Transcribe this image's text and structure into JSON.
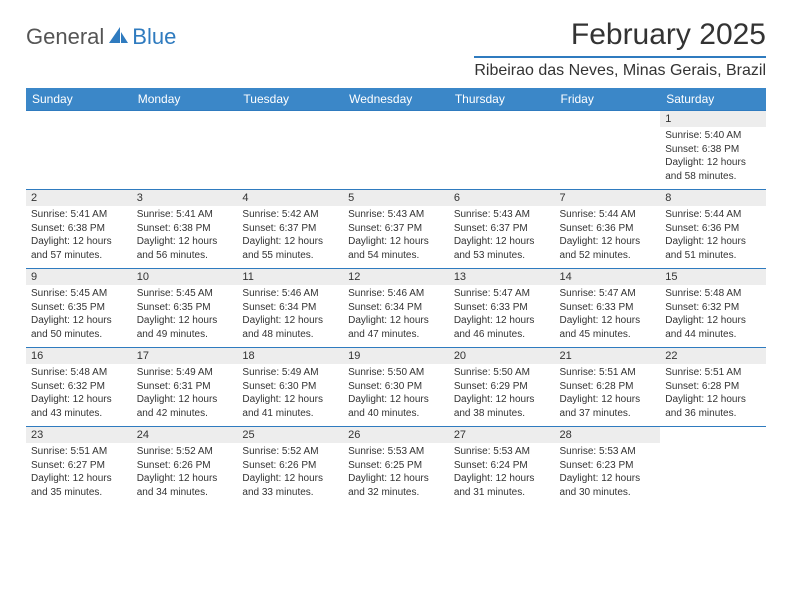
{
  "brand": {
    "name1": "General",
    "name2": "Blue"
  },
  "title": "February 2025",
  "location": "Ribeirao das Neves, Minas Gerais, Brazil",
  "colors": {
    "header_bg": "#3b87c8",
    "accent": "#2f7bbf",
    "daynum_bg": "#ededed",
    "text": "#333333",
    "page_bg": "#ffffff"
  },
  "day_labels": [
    "Sunday",
    "Monday",
    "Tuesday",
    "Wednesday",
    "Thursday",
    "Friday",
    "Saturday"
  ],
  "weeks": [
    [
      null,
      null,
      null,
      null,
      null,
      null,
      {
        "n": "1",
        "sr": "5:40 AM",
        "ss": "6:38 PM",
        "dl": "12 hours and 58 minutes."
      }
    ],
    [
      {
        "n": "2",
        "sr": "5:41 AM",
        "ss": "6:38 PM",
        "dl": "12 hours and 57 minutes."
      },
      {
        "n": "3",
        "sr": "5:41 AM",
        "ss": "6:38 PM",
        "dl": "12 hours and 56 minutes."
      },
      {
        "n": "4",
        "sr": "5:42 AM",
        "ss": "6:37 PM",
        "dl": "12 hours and 55 minutes."
      },
      {
        "n": "5",
        "sr": "5:43 AM",
        "ss": "6:37 PM",
        "dl": "12 hours and 54 minutes."
      },
      {
        "n": "6",
        "sr": "5:43 AM",
        "ss": "6:37 PM",
        "dl": "12 hours and 53 minutes."
      },
      {
        "n": "7",
        "sr": "5:44 AM",
        "ss": "6:36 PM",
        "dl": "12 hours and 52 minutes."
      },
      {
        "n": "8",
        "sr": "5:44 AM",
        "ss": "6:36 PM",
        "dl": "12 hours and 51 minutes."
      }
    ],
    [
      {
        "n": "9",
        "sr": "5:45 AM",
        "ss": "6:35 PM",
        "dl": "12 hours and 50 minutes."
      },
      {
        "n": "10",
        "sr": "5:45 AM",
        "ss": "6:35 PM",
        "dl": "12 hours and 49 minutes."
      },
      {
        "n": "11",
        "sr": "5:46 AM",
        "ss": "6:34 PM",
        "dl": "12 hours and 48 minutes."
      },
      {
        "n": "12",
        "sr": "5:46 AM",
        "ss": "6:34 PM",
        "dl": "12 hours and 47 minutes."
      },
      {
        "n": "13",
        "sr": "5:47 AM",
        "ss": "6:33 PM",
        "dl": "12 hours and 46 minutes."
      },
      {
        "n": "14",
        "sr": "5:47 AM",
        "ss": "6:33 PM",
        "dl": "12 hours and 45 minutes."
      },
      {
        "n": "15",
        "sr": "5:48 AM",
        "ss": "6:32 PM",
        "dl": "12 hours and 44 minutes."
      }
    ],
    [
      {
        "n": "16",
        "sr": "5:48 AM",
        "ss": "6:32 PM",
        "dl": "12 hours and 43 minutes."
      },
      {
        "n": "17",
        "sr": "5:49 AM",
        "ss": "6:31 PM",
        "dl": "12 hours and 42 minutes."
      },
      {
        "n": "18",
        "sr": "5:49 AM",
        "ss": "6:30 PM",
        "dl": "12 hours and 41 minutes."
      },
      {
        "n": "19",
        "sr": "5:50 AM",
        "ss": "6:30 PM",
        "dl": "12 hours and 40 minutes."
      },
      {
        "n": "20",
        "sr": "5:50 AM",
        "ss": "6:29 PM",
        "dl": "12 hours and 38 minutes."
      },
      {
        "n": "21",
        "sr": "5:51 AM",
        "ss": "6:28 PM",
        "dl": "12 hours and 37 minutes."
      },
      {
        "n": "22",
        "sr": "5:51 AM",
        "ss": "6:28 PM",
        "dl": "12 hours and 36 minutes."
      }
    ],
    [
      {
        "n": "23",
        "sr": "5:51 AM",
        "ss": "6:27 PM",
        "dl": "12 hours and 35 minutes."
      },
      {
        "n": "24",
        "sr": "5:52 AM",
        "ss": "6:26 PM",
        "dl": "12 hours and 34 minutes."
      },
      {
        "n": "25",
        "sr": "5:52 AM",
        "ss": "6:26 PM",
        "dl": "12 hours and 33 minutes."
      },
      {
        "n": "26",
        "sr": "5:53 AM",
        "ss": "6:25 PM",
        "dl": "12 hours and 32 minutes."
      },
      {
        "n": "27",
        "sr": "5:53 AM",
        "ss": "6:24 PM",
        "dl": "12 hours and 31 minutes."
      },
      {
        "n": "28",
        "sr": "5:53 AM",
        "ss": "6:23 PM",
        "dl": "12 hours and 30 minutes."
      },
      null
    ]
  ],
  "labels": {
    "sunrise": "Sunrise:",
    "sunset": "Sunset:",
    "daylight": "Daylight:"
  }
}
